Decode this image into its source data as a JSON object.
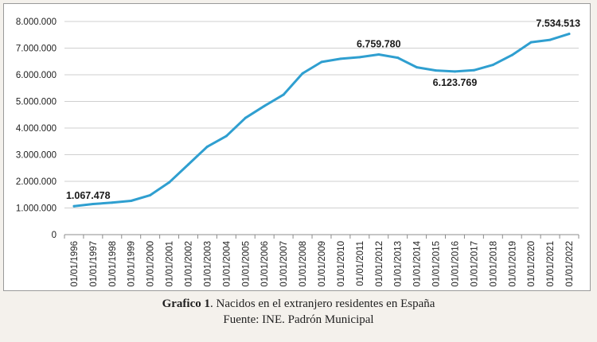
{
  "chart_data": {
    "type": "line",
    "title": "",
    "xlabel": "",
    "ylabel": "",
    "ylim": [
      0,
      8000000
    ],
    "yticks": [
      "0",
      "1.000.000",
      "2.000.000",
      "3.000.000",
      "4.000.000",
      "5.000.000",
      "6.000.000",
      "7.000.000",
      "8.000.000"
    ],
    "categories": [
      "01/01/1996",
      "01/01/1997",
      "01/01/1998",
      "01/01/1999",
      "01/01/2000",
      "01/01/2001",
      "01/01/2002",
      "01/01/2003",
      "01/01/2004",
      "01/01/2005",
      "01/01/2006",
      "01/01/2007",
      "01/01/2008",
      "01/01/2009",
      "01/01/2010",
      "01/01/2011",
      "01/01/2012",
      "01/01/2013",
      "01/01/2014",
      "01/01/2015",
      "01/01/2016",
      "01/01/2017",
      "01/01/2018",
      "01/01/2019",
      "01/01/2020",
      "01/01/2021",
      "01/01/2022"
    ],
    "series": [
      {
        "name": "Nacidos en el extranjero",
        "color": "#2f9fd0",
        "values": [
          1067478,
          1150000,
          1200000,
          1270000,
          1480000,
          1960000,
          2630000,
          3300000,
          3700000,
          4380000,
          4830000,
          5250000,
          6050000,
          6480000,
          6600000,
          6660000,
          6759780,
          6640000,
          6280000,
          6160000,
          6123769,
          6170000,
          6370000,
          6740000,
          7220000,
          7310000,
          7534513
        ]
      }
    ],
    "annotations": [
      {
        "index": 0,
        "text": "1.067.478",
        "placement": "above"
      },
      {
        "index": 16,
        "text": "6.759.780",
        "placement": "above"
      },
      {
        "index": 20,
        "text": "6.123.769",
        "placement": "below"
      },
      {
        "index": 26,
        "text": "7.534.513",
        "placement": "above"
      }
    ],
    "grid": true
  },
  "caption": {
    "bold_part": "Grafico 1",
    "rest": ". Nacidos en el extranjero residentes en España",
    "source": "Fuente: INE. Padrón Municipal"
  }
}
